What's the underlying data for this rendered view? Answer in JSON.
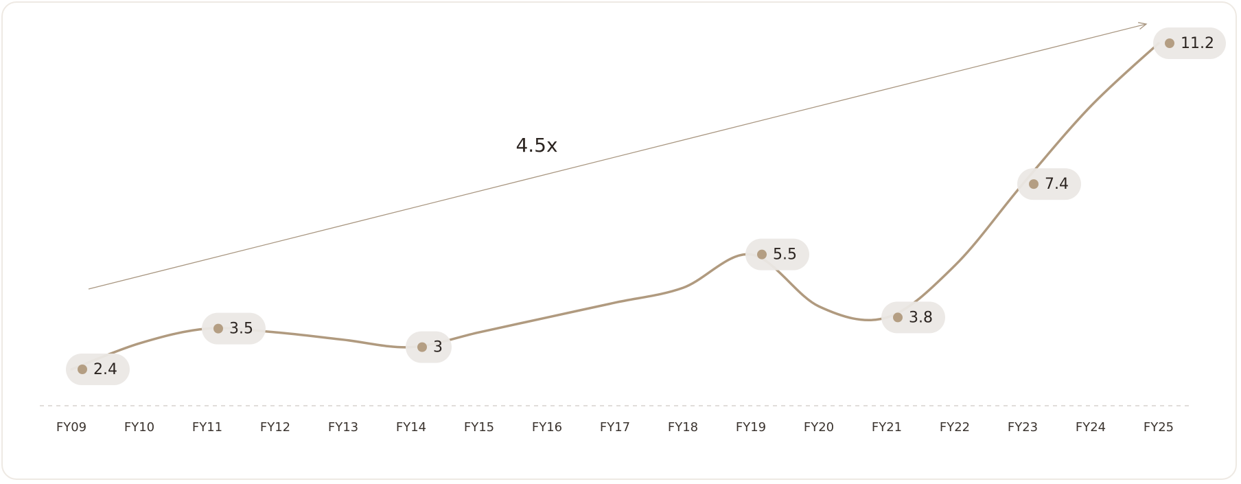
{
  "chart_data": {
    "type": "line",
    "categories": [
      "FY09",
      "FY10",
      "FY11",
      "FY12",
      "FY13",
      "FY14",
      "FY15",
      "FY16",
      "FY17",
      "FY18",
      "FY19",
      "FY20",
      "FY21",
      "FY22",
      "FY23",
      "FY24",
      "FY25"
    ],
    "values": [
      2.4,
      3.1,
      3.5,
      3.4,
      3.2,
      3,
      3.4,
      3.8,
      4.2,
      4.6,
      5.5,
      4.1,
      3.8,
      5.2,
      7.4,
      9.5,
      11.2
    ],
    "value_labels": [
      "2.4",
      null,
      "3.5",
      null,
      null,
      "3",
      null,
      null,
      null,
      null,
      "5.5",
      null,
      "3.8",
      null,
      "7.4",
      null,
      "11.2"
    ],
    "color": "#b09a7f",
    "annotation": "4.5x"
  }
}
